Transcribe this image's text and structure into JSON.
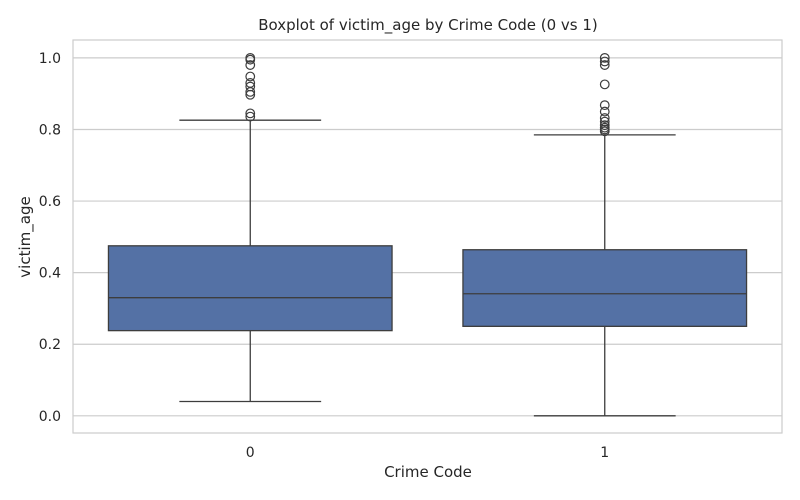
{
  "chart_data": {
    "type": "boxplot",
    "title": "Boxplot of victim_age by Crime Code (0 vs 1)",
    "xlabel": "Crime Code",
    "ylabel": "victim_age",
    "categories": [
      "0",
      "1"
    ],
    "ylim": [
      -0.048,
      1.05
    ],
    "yticks": [
      0.0,
      0.2,
      0.4,
      0.6,
      0.8,
      1.0
    ],
    "ytick_labels": [
      "0.0",
      "0.2",
      "0.4",
      "0.6",
      "0.8",
      "1.0"
    ],
    "grid": true,
    "box_color": "#5471a5",
    "line_color": "#3d3d3d",
    "grid_color": "#cccccc",
    "series": [
      {
        "category": "0",
        "whisker_low": 0.04,
        "q1": 0.238,
        "median": 0.33,
        "q3": 0.475,
        "whisker_high": 0.826,
        "outliers": [
          0.836,
          0.845,
          0.897,
          0.905,
          0.92,
          0.93,
          0.948,
          0.98,
          0.995,
          1.0
        ]
      },
      {
        "category": "1",
        "whisker_low": 0.0,
        "q1": 0.25,
        "median": 0.341,
        "q3": 0.464,
        "whisker_high": 0.785,
        "outliers": [
          0.795,
          0.8,
          0.805,
          0.812,
          0.822,
          0.832,
          0.85,
          0.868,
          0.926,
          0.98,
          0.99,
          1.0
        ]
      }
    ]
  }
}
